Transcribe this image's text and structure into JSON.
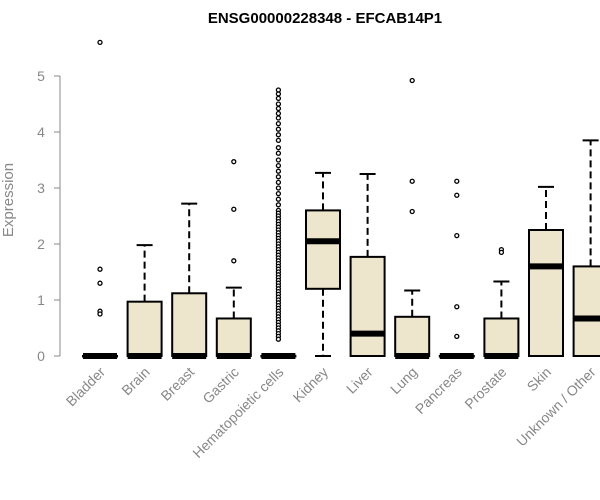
{
  "chart_data": {
    "type": "boxplot",
    "title": "ENSG00000228348 - EFCAB14P1",
    "ylabel": "Expression",
    "xlabel": "",
    "ylim": [
      0,
      5.6
    ],
    "yticks": [
      0,
      1,
      2,
      3,
      4,
      5
    ],
    "box_fill": "#EDE6CC",
    "box_stroke": "#000000",
    "categories": [
      "Bladder",
      "Brain",
      "Breast",
      "Gastric",
      "Hematopoietic cells",
      "Kidney",
      "Liver",
      "Lung",
      "Pancreas",
      "Prostate",
      "Skin",
      "Unknown / Other"
    ],
    "boxes": [
      {
        "q1": 0,
        "median": 0,
        "q3": 0,
        "whisker_low": 0,
        "whisker_high": 0,
        "outliers": [
          5.6,
          1.55,
          1.3,
          0.8,
          0.75
        ]
      },
      {
        "q1": 0,
        "median": 0,
        "q3": 0.97,
        "whisker_low": 0,
        "whisker_high": 1.98,
        "outliers": []
      },
      {
        "q1": 0,
        "median": 0,
        "q3": 1.12,
        "whisker_low": 0,
        "whisker_high": 2.72,
        "outliers": []
      },
      {
        "q1": 0,
        "median": 0,
        "q3": 0.67,
        "whisker_low": 0,
        "whisker_high": 1.22,
        "outliers": [
          3.47,
          2.62,
          1.7
        ]
      },
      {
        "q1": 0,
        "median": 0,
        "q3": 0,
        "whisker_low": 0,
        "whisker_high": 0,
        "outliers": [
          4.75,
          4.68,
          4.6,
          4.5,
          4.42,
          4.33,
          4.25,
          4.15,
          4.05,
          3.95,
          3.85,
          3.72,
          3.62,
          3.5,
          3.4,
          3.3,
          3.2,
          3.1,
          3.0,
          2.9,
          2.8,
          2.7,
          2.6,
          2.55,
          2.5,
          2.45,
          2.4,
          2.35,
          2.3,
          2.25,
          2.2,
          2.15,
          2.1,
          2.05,
          2.0,
          1.95,
          1.9,
          1.85,
          1.8,
          1.75,
          1.7,
          1.65,
          1.6,
          1.55,
          1.5,
          1.45,
          1.4,
          1.35,
          1.3,
          1.25,
          1.2,
          1.15,
          1.1,
          1.05,
          1.0,
          0.95,
          0.9,
          0.85,
          0.8,
          0.75,
          0.7,
          0.65,
          0.6,
          0.55,
          0.5,
          0.45,
          0.4,
          0.35,
          0.3
        ]
      },
      {
        "q1": 1.2,
        "median": 2.05,
        "q3": 2.6,
        "whisker_low": 0,
        "whisker_high": 3.27,
        "outliers": []
      },
      {
        "q1": 0,
        "median": 0.4,
        "q3": 1.77,
        "whisker_low": 0,
        "whisker_high": 3.25,
        "outliers": []
      },
      {
        "q1": 0,
        "median": 0,
        "q3": 0.7,
        "whisker_low": 0,
        "whisker_high": 1.17,
        "outliers": [
          4.92,
          3.12,
          2.58
        ]
      },
      {
        "q1": 0,
        "median": 0,
        "q3": 0,
        "whisker_low": 0,
        "whisker_high": 0,
        "outliers": [
          3.12,
          2.87,
          2.15,
          0.88,
          0.35
        ]
      },
      {
        "q1": 0,
        "median": 0,
        "q3": 0.67,
        "whisker_low": 0,
        "whisker_high": 1.33,
        "outliers": [
          1.9,
          1.85
        ]
      },
      {
        "q1": 0,
        "median": 1.6,
        "q3": 2.25,
        "whisker_low": 0,
        "whisker_high": 3.02,
        "outliers": []
      },
      {
        "q1": 0,
        "median": 0.67,
        "q3": 1.6,
        "whisker_low": 0,
        "whisker_high": 3.85,
        "outliers": []
      }
    ],
    "grid": false,
    "legend": "none"
  }
}
